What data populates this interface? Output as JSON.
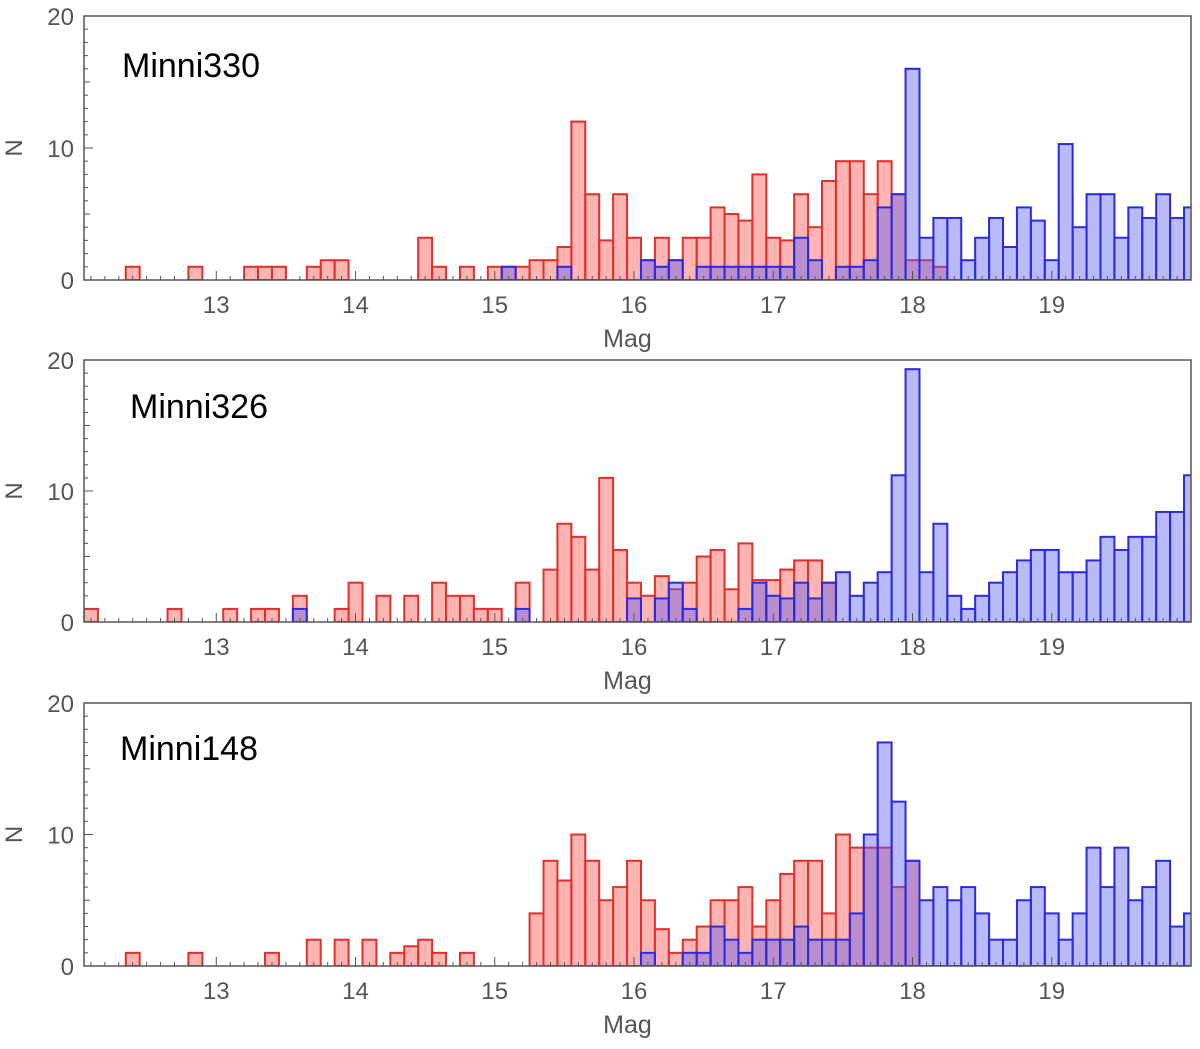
{
  "colors": {
    "red_fill": "#ff4d4d",
    "red_stroke": "#e0302a",
    "blue_fill": "#5a5af0",
    "blue_stroke": "#2a2ae0",
    "axis": "#555555",
    "tick_text": "#555555"
  },
  "chart_data": [
    {
      "type": "bar",
      "title": "Minni330",
      "xlabel": "Mag",
      "ylabel": "N",
      "xlim": [
        12.05,
        20.0
      ],
      "ylim": [
        0,
        20
      ],
      "xticks": [
        13,
        14,
        15,
        16,
        17,
        18,
        19
      ],
      "yticks": [
        0,
        10,
        20
      ],
      "bin_width": 0.1,
      "grid": false,
      "series": [
        {
          "color": "red",
          "bins": [
            [
              12.4,
              1
            ],
            [
              12.85,
              1
            ],
            [
              13.25,
              1
            ],
            [
              13.35,
              1
            ],
            [
              13.45,
              1
            ],
            [
              13.7,
              1
            ],
            [
              13.8,
              1.5
            ],
            [
              13.9,
              1.5
            ],
            [
              14.5,
              3.2
            ],
            [
              14.6,
              1
            ],
            [
              14.8,
              1
            ],
            [
              15.0,
              1
            ],
            [
              15.1,
              1
            ],
            [
              15.2,
              1
            ],
            [
              15.3,
              1.5
            ],
            [
              15.4,
              1.5
            ],
            [
              15.5,
              2.5
            ],
            [
              15.6,
              12
            ],
            [
              15.7,
              6.5
            ],
            [
              15.8,
              3
            ],
            [
              15.9,
              6.5
            ],
            [
              16.0,
              3.2
            ],
            [
              16.1,
              1.5
            ],
            [
              16.2,
              3.2
            ],
            [
              16.3,
              1.5
            ],
            [
              16.4,
              3.2
            ],
            [
              16.5,
              3.2
            ],
            [
              16.6,
              5.5
            ],
            [
              16.7,
              5
            ],
            [
              16.8,
              4.5
            ],
            [
              16.9,
              8
            ],
            [
              17.0,
              3.2
            ],
            [
              17.1,
              3
            ],
            [
              17.2,
              6.5
            ],
            [
              17.3,
              4
            ],
            [
              17.4,
              7.5
            ],
            [
              17.5,
              9
            ],
            [
              17.6,
              9
            ],
            [
              17.7,
              6.5
            ],
            [
              17.8,
              9
            ],
            [
              17.9,
              6.5
            ],
            [
              18.0,
              1.5
            ],
            [
              18.1,
              1.5
            ],
            [
              18.2,
              1
            ]
          ]
        },
        {
          "color": "blue",
          "bins": [
            [
              15.1,
              1
            ],
            [
              15.5,
              1
            ],
            [
              16.1,
              1.5
            ],
            [
              16.2,
              1
            ],
            [
              16.3,
              1.5
            ],
            [
              16.5,
              1
            ],
            [
              16.6,
              1
            ],
            [
              16.7,
              1
            ],
            [
              16.8,
              1
            ],
            [
              16.9,
              1
            ],
            [
              17.0,
              1
            ],
            [
              17.1,
              1
            ],
            [
              17.2,
              3.2
            ],
            [
              17.3,
              1.5
            ],
            [
              17.5,
              1
            ],
            [
              17.6,
              1
            ],
            [
              17.7,
              1.5
            ],
            [
              17.8,
              5.5
            ],
            [
              17.9,
              6.5
            ],
            [
              18.0,
              16
            ],
            [
              18.1,
              3.2
            ],
            [
              18.2,
              4.7
            ],
            [
              18.3,
              4.7
            ],
            [
              18.4,
              1.5
            ],
            [
              18.5,
              3.2
            ],
            [
              18.6,
              4.7
            ],
            [
              18.7,
              2.5
            ],
            [
              18.8,
              5.5
            ],
            [
              18.9,
              4.5
            ],
            [
              19.0,
              1.5
            ],
            [
              19.1,
              10.3
            ],
            [
              19.2,
              4
            ],
            [
              19.3,
              6.5
            ],
            [
              19.4,
              6.5
            ],
            [
              19.5,
              3.2
            ],
            [
              19.6,
              5.5
            ],
            [
              19.7,
              4.7
            ],
            [
              19.8,
              6.5
            ],
            [
              19.9,
              4.7
            ],
            [
              20.0,
              5.5
            ]
          ]
        }
      ]
    },
    {
      "type": "bar",
      "title": "Minni326",
      "xlabel": "Mag",
      "ylabel": "N",
      "xlim": [
        12.05,
        20.0
      ],
      "ylim": [
        0,
        20
      ],
      "xticks": [
        13,
        14,
        15,
        16,
        17,
        18,
        19
      ],
      "yticks": [
        0,
        10,
        20
      ],
      "bin_width": 0.1,
      "grid": false,
      "series": [
        {
          "color": "red",
          "bins": [
            [
              12.1,
              1
            ],
            [
              12.7,
              1
            ],
            [
              13.1,
              1
            ],
            [
              13.3,
              1
            ],
            [
              13.4,
              1
            ],
            [
              13.6,
              2
            ],
            [
              13.9,
              1
            ],
            [
              14.0,
              3
            ],
            [
              14.2,
              2
            ],
            [
              14.4,
              2
            ],
            [
              14.6,
              3
            ],
            [
              14.7,
              2
            ],
            [
              14.8,
              2
            ],
            [
              14.9,
              1
            ],
            [
              15.0,
              1
            ],
            [
              15.2,
              3
            ],
            [
              15.4,
              4
            ],
            [
              15.5,
              7.5
            ],
            [
              15.6,
              6.5
            ],
            [
              15.7,
              4
            ],
            [
              15.8,
              11
            ],
            [
              15.9,
              5.5
            ],
            [
              16.0,
              3
            ],
            [
              16.1,
              2
            ],
            [
              16.2,
              3.5
            ],
            [
              16.3,
              2.5
            ],
            [
              16.4,
              3
            ],
            [
              16.5,
              5
            ],
            [
              16.6,
              5.5
            ],
            [
              16.7,
              2.5
            ],
            [
              16.8,
              6
            ],
            [
              16.9,
              3.2
            ],
            [
              17.0,
              3.2
            ],
            [
              17.1,
              4
            ],
            [
              17.2,
              4.7
            ],
            [
              17.3,
              4.7
            ],
            [
              17.4,
              3
            ]
          ]
        },
        {
          "color": "blue",
          "bins": [
            [
              13.6,
              1
            ],
            [
              15.2,
              1
            ],
            [
              16.0,
              1.8
            ],
            [
              16.2,
              1.8
            ],
            [
              16.3,
              3
            ],
            [
              16.4,
              1
            ],
            [
              16.8,
              1
            ],
            [
              16.9,
              3
            ],
            [
              17.0,
              2
            ],
            [
              17.1,
              1.8
            ],
            [
              17.2,
              3
            ],
            [
              17.3,
              1.8
            ],
            [
              17.4,
              3
            ],
            [
              17.5,
              3.8
            ],
            [
              17.6,
              2
            ],
            [
              17.7,
              3
            ],
            [
              17.8,
              3.8
            ],
            [
              17.9,
              11.2
            ],
            [
              18.0,
              19.3
            ],
            [
              18.1,
              3.8
            ],
            [
              18.2,
              7.5
            ],
            [
              18.3,
              2
            ],
            [
              18.4,
              1
            ],
            [
              18.5,
              2
            ],
            [
              18.6,
              3
            ],
            [
              18.7,
              3.8
            ],
            [
              18.8,
              4.7
            ],
            [
              18.9,
              5.5
            ],
            [
              19.0,
              5.5
            ],
            [
              19.1,
              3.8
            ],
            [
              19.2,
              3.8
            ],
            [
              19.3,
              4.7
            ],
            [
              19.4,
              6.5
            ],
            [
              19.5,
              5.5
            ],
            [
              19.6,
              6.5
            ],
            [
              19.7,
              6.5
            ],
            [
              19.8,
              8.4
            ],
            [
              19.9,
              8.4
            ],
            [
              20.0,
              11.2
            ]
          ]
        }
      ]
    },
    {
      "type": "bar",
      "title": "Minni148",
      "xlabel": "Mag",
      "ylabel": "N",
      "xlim": [
        12.05,
        20.0
      ],
      "ylim": [
        0,
        20
      ],
      "xticks": [
        13,
        14,
        15,
        16,
        17,
        18,
        19
      ],
      "yticks": [
        0,
        10,
        20
      ],
      "bin_width": 0.1,
      "grid": false,
      "series": [
        {
          "color": "red",
          "bins": [
            [
              12.4,
              1
            ],
            [
              12.85,
              1
            ],
            [
              13.4,
              1
            ],
            [
              13.7,
              2
            ],
            [
              13.9,
              2
            ],
            [
              14.1,
              2
            ],
            [
              14.3,
              1
            ],
            [
              14.4,
              1.5
            ],
            [
              14.5,
              2
            ],
            [
              14.6,
              1
            ],
            [
              14.8,
              1
            ],
            [
              15.3,
              4
            ],
            [
              15.4,
              8
            ],
            [
              15.5,
              6.5
            ],
            [
              15.6,
              10
            ],
            [
              15.7,
              8
            ],
            [
              15.8,
              5
            ],
            [
              15.9,
              6
            ],
            [
              16.0,
              8
            ],
            [
              16.1,
              5
            ],
            [
              16.2,
              2.8
            ],
            [
              16.3,
              1
            ],
            [
              16.4,
              2
            ],
            [
              16.5,
              3
            ],
            [
              16.6,
              5
            ],
            [
              16.7,
              5
            ],
            [
              16.8,
              6
            ],
            [
              16.9,
              3
            ],
            [
              17.0,
              5
            ],
            [
              17.1,
              7
            ],
            [
              17.2,
              8
            ],
            [
              17.3,
              8
            ],
            [
              17.4,
              4
            ],
            [
              17.5,
              10
            ],
            [
              17.6,
              9
            ],
            [
              17.7,
              9
            ],
            [
              17.8,
              9
            ],
            [
              17.9,
              6
            ],
            [
              18.0,
              8
            ]
          ]
        },
        {
          "color": "blue",
          "bins": [
            [
              16.1,
              1
            ],
            [
              16.4,
              1
            ],
            [
              16.5,
              1
            ],
            [
              16.6,
              3
            ],
            [
              16.7,
              2
            ],
            [
              16.8,
              1
            ],
            [
              16.9,
              2
            ],
            [
              17.0,
              2
            ],
            [
              17.1,
              2
            ],
            [
              17.2,
              3
            ],
            [
              17.3,
              2
            ],
            [
              17.4,
              2
            ],
            [
              17.5,
              2
            ],
            [
              17.6,
              4
            ],
            [
              17.7,
              10
            ],
            [
              17.8,
              17
            ],
            [
              17.9,
              12.5
            ],
            [
              18.0,
              8
            ],
            [
              18.1,
              5
            ],
            [
              18.2,
              6
            ],
            [
              18.3,
              5
            ],
            [
              18.4,
              6
            ],
            [
              18.5,
              4
            ],
            [
              18.6,
              2
            ],
            [
              18.7,
              2
            ],
            [
              18.8,
              5
            ],
            [
              18.9,
              6
            ],
            [
              19.0,
              4
            ],
            [
              19.1,
              2
            ],
            [
              19.2,
              4
            ],
            [
              19.3,
              9
            ],
            [
              19.4,
              6
            ],
            [
              19.5,
              9
            ],
            [
              19.6,
              5
            ],
            [
              19.7,
              6
            ],
            [
              19.8,
              8
            ],
            [
              19.9,
              3
            ],
            [
              20.0,
              4
            ]
          ]
        }
      ]
    }
  ]
}
